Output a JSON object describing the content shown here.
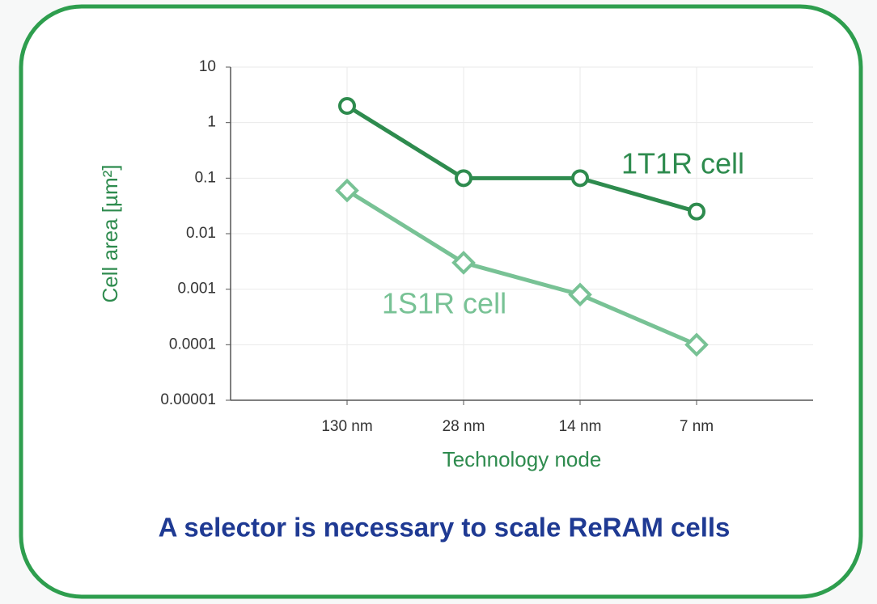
{
  "chart_data": {
    "type": "line",
    "caption": "A selector is necessary to scale ReRAM cells",
    "xlabel": "Technology node",
    "ylabel": "Cell area [µm²]",
    "categories": [
      "130 nm",
      "28 nm",
      "14 nm",
      "7 nm"
    ],
    "series": [
      {
        "name": "1T1R cell",
        "color": "#2e8b4e",
        "marker": "circle",
        "values": [
          2,
          0.1,
          0.1,
          0.025
        ]
      },
      {
        "name": "1S1R cell",
        "color": "#78c295",
        "marker": "diamond",
        "values": [
          0.06,
          0.003,
          0.0008,
          0.0001
        ]
      }
    ],
    "ylim": [
      1e-05,
      10
    ],
    "yticks": [
      10,
      1,
      0.1,
      0.01,
      0.001,
      0.0001,
      1e-05
    ],
    "log_y": true,
    "grid": true
  }
}
